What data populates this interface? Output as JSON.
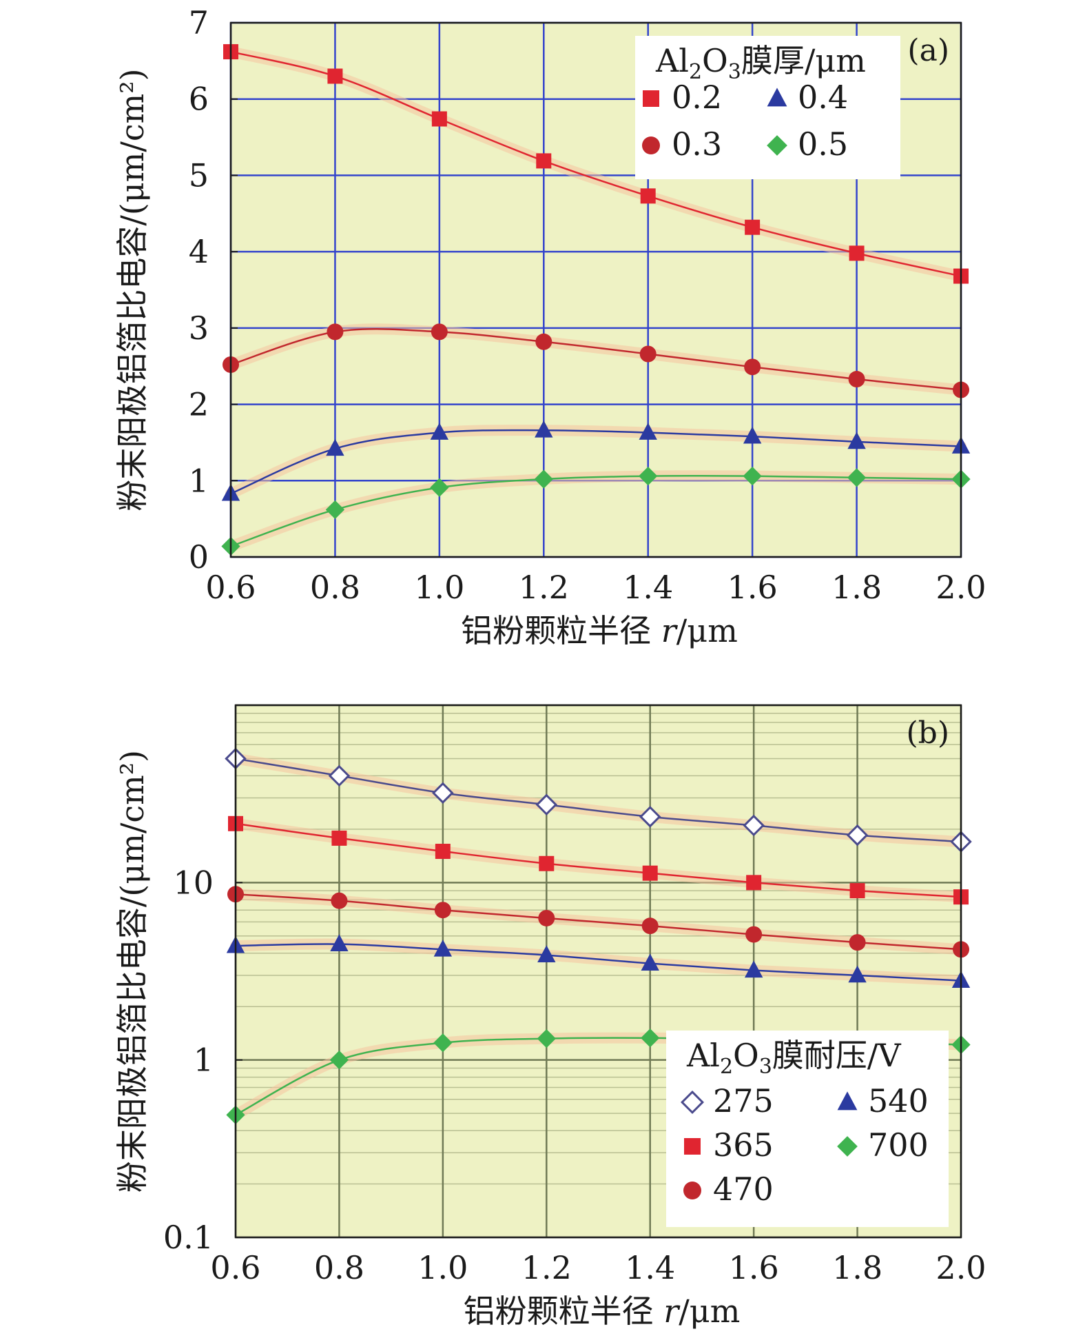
{
  "colors": {
    "plot_background": "#eef2c4",
    "grid_a": "#3344cc",
    "grid_b": "#707a55",
    "minor_grid_b": "#b9bf92",
    "series_red": "#e02530",
    "series_darkred": "#c1272d",
    "series_blue": "#2b3aa0",
    "series_green": "#3fb34f",
    "series_hollow": "#4a4a8c",
    "band_salmon": "#f6c4a0"
  },
  "chart_data": [
    {
      "id": "a",
      "type": "line",
      "panel_label": "(a)",
      "xlabel_prefix": "铝粉颗粒半径 ",
      "xlabel_var": "r",
      "xlabel_suffix": "/μm",
      "ylabel": "粉末阳极铝箔比电容/(μm/cm²)",
      "x": [
        0.6,
        0.8,
        1.0,
        1.2,
        1.4,
        1.6,
        1.8,
        2.0
      ],
      "x_ticks": [
        "0.6",
        "0.8",
        "1.0",
        "1.2",
        "1.4",
        "1.6",
        "1.8",
        "2.0"
      ],
      "xlim": [
        0.6,
        2.0
      ],
      "ylim": [
        0,
        7
      ],
      "y_ticks": [
        "0",
        "1",
        "2",
        "3",
        "4",
        "5",
        "6",
        "7"
      ],
      "y_scale": "linear",
      "grid": true,
      "legend": {
        "title_main": "Al",
        "title_sub1": "2",
        "title_mid": "O",
        "title_sub2": "3",
        "title_rest": "膜厚/μm",
        "placement": "top-right"
      },
      "series": [
        {
          "name": "0.2",
          "marker": "square",
          "color": "#e02530",
          "values": [
            6.62,
            6.3,
            5.74,
            5.19,
            4.73,
            4.32,
            3.98,
            3.68
          ]
        },
        {
          "name": "0.3",
          "marker": "circle",
          "color": "#c1272d",
          "values": [
            2.52,
            2.95,
            2.95,
            2.82,
            2.66,
            2.49,
            2.33,
            2.19
          ]
        },
        {
          "name": "0.4",
          "marker": "triangle",
          "color": "#2b3aa0",
          "values": [
            0.83,
            1.42,
            1.63,
            1.66,
            1.63,
            1.58,
            1.51,
            1.45
          ]
        },
        {
          "name": "0.5",
          "marker": "diamond",
          "color": "#3fb34f",
          "values": [
            0.14,
            0.62,
            0.91,
            1.02,
            1.06,
            1.06,
            1.04,
            1.02
          ]
        }
      ]
    },
    {
      "id": "b",
      "type": "line",
      "panel_label": "(b)",
      "xlabel_prefix": "铝粉颗粒半径 ",
      "xlabel_var": "r",
      "xlabel_suffix": "/μm",
      "ylabel": "粉末阳极铝箔比电容/(μm/cm²)",
      "x": [
        0.6,
        0.8,
        1.0,
        1.2,
        1.4,
        1.6,
        1.8,
        2.0
      ],
      "x_ticks": [
        "0.6",
        "0.8",
        "1.0",
        "1.2",
        "1.4",
        "1.6",
        "1.8",
        "2.0"
      ],
      "xlim": [
        0.6,
        2.0
      ],
      "ylim": [
        0.1,
        100
      ],
      "y_ticks": [
        "0.1",
        "1",
        "10"
      ],
      "y_scale": "log",
      "grid": true,
      "legend": {
        "title_main": "Al",
        "title_sub1": "2",
        "title_mid": "O",
        "title_sub2": "3",
        "title_rest": "膜耐压/V",
        "placement": "bottom-right"
      },
      "series": [
        {
          "name": "275",
          "marker": "diamond-open",
          "color": "#4a4a8c",
          "values": [
            50,
            40,
            32,
            27.5,
            23.5,
            21,
            18.5,
            17
          ]
        },
        {
          "name": "365",
          "marker": "square",
          "color": "#e02530",
          "values": [
            21.5,
            17.8,
            15,
            12.8,
            11.3,
            10,
            9,
            8.3
          ]
        },
        {
          "name": "470",
          "marker": "circle",
          "color": "#c1272d",
          "values": [
            8.6,
            7.9,
            7,
            6.3,
            5.7,
            5.1,
            4.6,
            4.2
          ]
        },
        {
          "name": "540",
          "marker": "triangle",
          "color": "#2b3aa0",
          "values": [
            4.4,
            4.5,
            4.2,
            3.9,
            3.5,
            3.2,
            3,
            2.8
          ]
        },
        {
          "name": "700",
          "marker": "diamond",
          "color": "#3fb34f",
          "values": [
            0.49,
            1.0,
            1.25,
            1.32,
            1.33,
            1.3,
            1.27,
            1.22
          ]
        }
      ]
    }
  ]
}
